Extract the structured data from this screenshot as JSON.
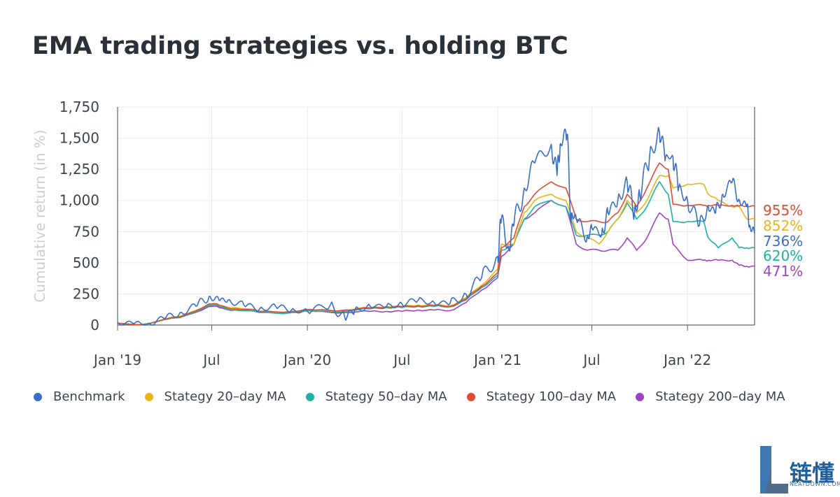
{
  "title": "EMA trading strategies vs. holding BTC",
  "colors": {
    "benchmark": "#3a6fc4",
    "ma20": "#e8b418",
    "ma50": "#1bb3a3",
    "ma100": "#e24a32",
    "ma200": "#a043c0",
    "axis_text": "#3c4550",
    "grid": "#e8ecef"
  },
  "logo": {
    "text": "链懂",
    "subtext": "NEATDOWN.COM"
  },
  "chart_data": {
    "type": "line",
    "title": "EMA trading strategies vs. holding BTC",
    "xlabel": "",
    "ylabel": "Cumulative return (in %)",
    "ylim": [
      0,
      1750
    ],
    "xlim": [
      "2019-01-01",
      "2022-05-10"
    ],
    "yticks": [
      0,
      250,
      500,
      750,
      1000,
      1250,
      1500,
      1750
    ],
    "ytick_labels": [
      "0",
      "250",
      "500",
      "750",
      "1,000",
      "1,250",
      "1,500",
      "1,750"
    ],
    "xticks": [
      "2019-01-01",
      "2019-07-01",
      "2020-01-01",
      "2020-07-01",
      "2021-01-01",
      "2021-07-01",
      "2022-01-01"
    ],
    "xtick_labels": [
      "Jan '19",
      "Jul",
      "Jan '20",
      "Jul",
      "Jan '21",
      "Jul",
      "Jan '22"
    ],
    "grid": true,
    "legend_position": "bottom",
    "series": [
      {
        "name": "Benchmark",
        "color": "#3a6fc4",
        "end_label": "736%",
        "x": [
          "2019-01-01",
          "2019-02-01",
          "2019-03-01",
          "2019-04-01",
          "2019-05-01",
          "2019-06-01",
          "2019-06-26",
          "2019-07-15",
          "2019-08-01",
          "2019-09-01",
          "2019-10-01",
          "2019-11-01",
          "2019-12-01",
          "2020-01-01",
          "2020-02-14",
          "2020-03-13",
          "2020-04-01",
          "2020-05-01",
          "2020-06-01",
          "2020-07-01",
          "2020-08-01",
          "2020-09-01",
          "2020-10-01",
          "2020-11-01",
          "2020-12-01",
          "2021-01-01",
          "2021-01-08",
          "2021-01-22",
          "2021-02-01",
          "2021-02-21",
          "2021-03-13",
          "2021-04-14",
          "2021-04-25",
          "2021-05-01",
          "2021-05-12",
          "2021-05-23",
          "2021-06-01",
          "2021-06-22",
          "2021-07-01",
          "2021-07-20",
          "2021-08-01",
          "2021-08-20",
          "2021-09-07",
          "2021-09-21",
          "2021-10-01",
          "2021-10-20",
          "2021-11-08",
          "2021-11-20",
          "2021-12-04",
          "2021-12-15",
          "2022-01-01",
          "2022-01-24",
          "2022-02-10",
          "2022-02-24",
          "2022-03-10",
          "2022-03-28",
          "2022-04-11",
          "2022-04-25",
          "2022-05-01",
          "2022-05-10"
        ],
        "y": [
          20,
          10,
          15,
          50,
          100,
          150,
          230,
          200,
          200,
          160,
          130,
          150,
          120,
          110,
          160,
          60,
          120,
          150,
          150,
          170,
          200,
          180,
          170,
          250,
          380,
          550,
          850,
          620,
          800,
          1100,
          1300,
          1450,
          1200,
          1450,
          1550,
          900,
          850,
          700,
          780,
          730,
          900,
          1000,
          1150,
          900,
          1050,
          1350,
          1550,
          1350,
          1350,
          1100,
          1000,
          800,
          950,
          900,
          1050,
          1150,
          1000,
          950,
          800,
          736
        ]
      },
      {
        "name": "Stategy 20–day MA",
        "color": "#e8b418",
        "end_label": "852%",
        "x": [
          "2019-01-01",
          "2019-03-01",
          "2019-05-01",
          "2019-06-26",
          "2019-07-15",
          "2019-08-15",
          "2019-10-01",
          "2019-12-01",
          "2020-01-15",
          "2020-03-13",
          "2020-05-01",
          "2020-06-01",
          "2020-07-01",
          "2020-08-01",
          "2020-09-01",
          "2020-10-01",
          "2020-11-01",
          "2020-12-01",
          "2021-01-01",
          "2021-01-08",
          "2021-02-01",
          "2021-02-21",
          "2021-03-13",
          "2021-04-14",
          "2021-05-12",
          "2021-06-01",
          "2021-06-22",
          "2021-07-15",
          "2021-08-01",
          "2021-08-20",
          "2021-09-07",
          "2021-09-25",
          "2021-10-15",
          "2021-11-08",
          "2021-11-25",
          "2021-12-04",
          "2022-01-01",
          "2022-02-01",
          "2022-02-10",
          "2022-03-01",
          "2022-03-28",
          "2022-04-10",
          "2022-04-25",
          "2022-05-10"
        ],
        "y": [
          15,
          10,
          70,
          170,
          160,
          140,
          110,
          110,
          120,
          120,
          140,
          150,
          150,
          160,
          160,
          155,
          220,
          320,
          450,
          650,
          650,
          900,
          1000,
          1050,
          1000,
          750,
          700,
          650,
          750,
          850,
          1000,
          900,
          1000,
          1200,
          1200,
          1100,
          1130,
          1130,
          1050,
          1000,
          950,
          950,
          852,
          852
        ]
      },
      {
        "name": "Stategy 50–day MA",
        "color": "#1bb3a3",
        "end_label": "620%",
        "x": [
          "2019-01-01",
          "2019-03-01",
          "2019-05-01",
          "2019-06-26",
          "2019-07-15",
          "2019-08-15",
          "2019-10-01",
          "2019-12-01",
          "2020-01-15",
          "2020-03-13",
          "2020-05-01",
          "2020-06-01",
          "2020-07-01",
          "2020-08-01",
          "2020-09-01",
          "2020-10-01",
          "2020-11-01",
          "2020-12-01",
          "2021-01-01",
          "2021-01-08",
          "2021-02-01",
          "2021-02-21",
          "2021-03-13",
          "2021-04-14",
          "2021-05-12",
          "2021-06-01",
          "2021-06-22",
          "2021-07-15",
          "2021-08-01",
          "2021-08-20",
          "2021-09-07",
          "2021-09-25",
          "2021-10-15",
          "2021-11-08",
          "2021-11-25",
          "2021-12-04",
          "2022-01-01",
          "2022-02-01",
          "2022-02-10",
          "2022-03-01",
          "2022-03-28",
          "2022-04-10",
          "2022-04-25",
          "2022-05-10"
        ],
        "y": [
          15,
          10,
          60,
          160,
          150,
          120,
          100,
          100,
          110,
          110,
          130,
          140,
          140,
          150,
          150,
          145,
          200,
          300,
          400,
          600,
          650,
          850,
          950,
          1000,
          950,
          720,
          720,
          720,
          750,
          850,
          980,
          850,
          950,
          1150,
          1050,
          830,
          830,
          830,
          700,
          620,
          700,
          620,
          620,
          620
        ]
      },
      {
        "name": "Stategy 100–day MA",
        "color": "#e24a32",
        "end_label": "955%",
        "x": [
          "2019-01-01",
          "2019-03-01",
          "2019-05-01",
          "2019-06-26",
          "2019-07-15",
          "2019-08-15",
          "2019-10-01",
          "2019-12-01",
          "2020-01-15",
          "2020-03-13",
          "2020-05-01",
          "2020-06-01",
          "2020-07-01",
          "2020-08-01",
          "2020-09-01",
          "2020-10-01",
          "2020-11-01",
          "2020-12-01",
          "2021-01-01",
          "2021-01-08",
          "2021-02-01",
          "2021-02-21",
          "2021-03-13",
          "2021-04-14",
          "2021-05-12",
          "2021-06-01",
          "2021-06-22",
          "2021-07-15",
          "2021-08-01",
          "2021-08-20",
          "2021-09-07",
          "2021-09-25",
          "2021-10-15",
          "2021-11-08",
          "2021-11-25",
          "2021-12-04",
          "2022-01-01",
          "2022-02-01",
          "2022-02-10",
          "2022-03-01",
          "2022-03-28",
          "2022-04-10",
          "2022-04-25",
          "2022-05-10"
        ],
        "y": [
          15,
          10,
          65,
          170,
          160,
          130,
          110,
          110,
          120,
          120,
          135,
          145,
          145,
          155,
          155,
          150,
          210,
          310,
          420,
          620,
          700,
          950,
          1050,
          1150,
          1100,
          850,
          830,
          830,
          830,
          900,
          1050,
          950,
          1100,
          1300,
          1250,
          970,
          960,
          960,
          960,
          960,
          960,
          955,
          955,
          955
        ]
      },
      {
        "name": "Stategy 200–day MA",
        "color": "#a043c0",
        "end_label": "471%",
        "x": [
          "2019-01-01",
          "2019-03-01",
          "2019-05-01",
          "2019-06-26",
          "2019-07-15",
          "2019-08-15",
          "2019-10-01",
          "2019-12-01",
          "2020-01-15",
          "2020-03-13",
          "2020-05-01",
          "2020-06-01",
          "2020-07-01",
          "2020-08-01",
          "2020-09-01",
          "2020-10-01",
          "2020-11-01",
          "2020-12-01",
          "2021-01-01",
          "2021-01-08",
          "2021-02-01",
          "2021-02-21",
          "2021-03-13",
          "2021-04-14",
          "2021-05-12",
          "2021-06-01",
          "2021-06-22",
          "2021-07-15",
          "2021-08-01",
          "2021-08-20",
          "2021-09-07",
          "2021-09-25",
          "2021-10-15",
          "2021-11-08",
          "2021-11-25",
          "2021-12-04",
          "2022-01-01",
          "2022-02-01",
          "2022-02-10",
          "2022-03-01",
          "2022-03-28",
          "2022-04-10",
          "2022-04-25",
          "2022-05-10"
        ],
        "y": [
          15,
          10,
          60,
          150,
          140,
          120,
          100,
          100,
          110,
          100,
          110,
          110,
          110,
          120,
          120,
          115,
          180,
          280,
          380,
          550,
          650,
          850,
          900,
          1000,
          950,
          650,
          600,
          600,
          600,
          600,
          700,
          600,
          700,
          900,
          850,
          650,
          520,
          520,
          520,
          520,
          520,
          480,
          471,
          471
        ]
      }
    ]
  }
}
